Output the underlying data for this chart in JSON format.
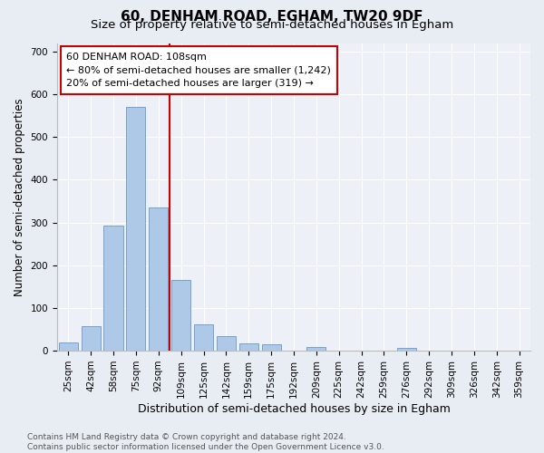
{
  "title1": "60, DENHAM ROAD, EGHAM, TW20 9DF",
  "title2": "Size of property relative to semi-detached houses in Egham",
  "xlabel": "Distribution of semi-detached houses by size in Egham",
  "ylabel": "Number of semi-detached properties",
  "categories": [
    "25sqm",
    "42sqm",
    "58sqm",
    "75sqm",
    "92sqm",
    "109sqm",
    "125sqm",
    "142sqm",
    "159sqm",
    "175sqm",
    "192sqm",
    "209sqm",
    "225sqm",
    "242sqm",
    "259sqm",
    "276sqm",
    "292sqm",
    "309sqm",
    "326sqm",
    "342sqm",
    "359sqm"
  ],
  "values": [
    20,
    57,
    293,
    570,
    335,
    165,
    62,
    35,
    17,
    15,
    0,
    8,
    0,
    0,
    0,
    7,
    0,
    0,
    0,
    0,
    0
  ],
  "bar_color": "#aec8e8",
  "bar_edge_color": "#6699cc",
  "subject_line_color": "#cc0000",
  "annotation_text": "60 DENHAM ROAD: 108sqm\n← 80% of semi-detached houses are smaller (1,242)\n20% of semi-detached houses are larger (319) →",
  "annotation_box_facecolor": "#ffffff",
  "annotation_border_color": "#cc0000",
  "ylim": [
    0,
    720
  ],
  "yticks": [
    0,
    100,
    200,
    300,
    400,
    500,
    600,
    700
  ],
  "bg_color": "#e8edf4",
  "plot_bg_color": "#edf1f7",
  "grid_color": "#ffffff",
  "footer": "Contains HM Land Registry data © Crown copyright and database right 2024.\nContains public sector information licensed under the Open Government Licence v3.0.",
  "title1_fontsize": 11,
  "title2_fontsize": 9.5,
  "xlabel_fontsize": 9,
  "ylabel_fontsize": 8.5,
  "tick_fontsize": 7.5,
  "annotation_fontsize": 8,
  "footer_fontsize": 6.5
}
